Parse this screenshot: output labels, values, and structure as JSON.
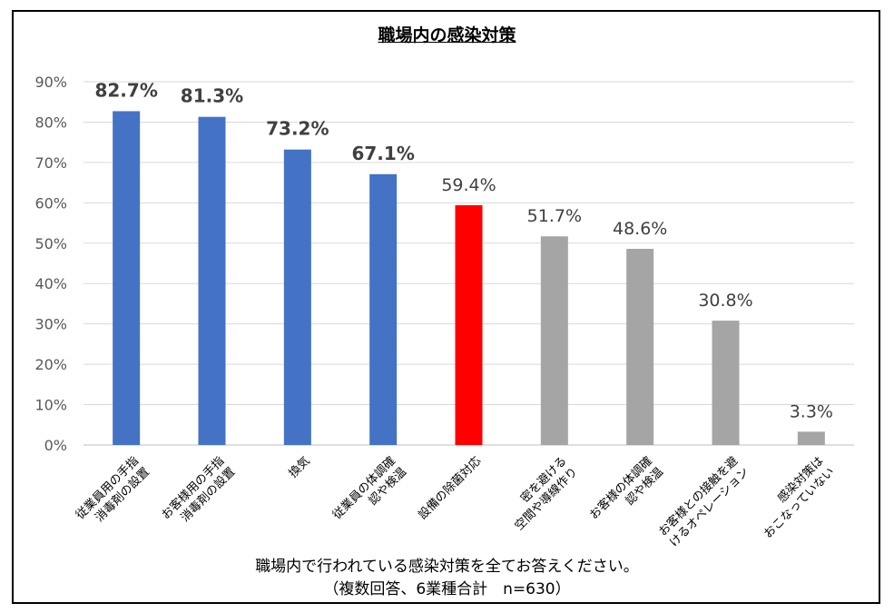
{
  "chart_data": {
    "type": "bar",
    "title": "職場内の感染対策",
    "categories": [
      [
        "従業員用の手指",
        "消毒剤の設置"
      ],
      [
        "お客様用の手指",
        "消毒剤の設置"
      ],
      [
        "換気"
      ],
      [
        "従業員の体調確",
        "認や検温"
      ],
      [
        "設備の除菌対応"
      ],
      [
        "密を避ける",
        "空間や導線作り"
      ],
      [
        "お客様の体調確",
        "認や検温"
      ],
      [
        "お客様との接触を避",
        "けるオペレーション"
      ],
      [
        "感染対策は",
        "おこなっていない"
      ]
    ],
    "values": [
      82.7,
      81.3,
      73.2,
      67.1,
      59.4,
      51.7,
      48.6,
      30.8,
      3.3
    ],
    "value_labels": [
      "82.7%",
      "81.3%",
      "73.2%",
      "67.1%",
      "59.4%",
      "51.7%",
      "48.6%",
      "30.8%",
      "3.3%"
    ],
    "bold_labels": [
      true,
      true,
      true,
      true,
      false,
      false,
      false,
      false,
      false
    ],
    "colors": [
      "#4472C4",
      "#4472C4",
      "#4472C4",
      "#4472C4",
      "#FF0000",
      "#A5A5A5",
      "#A5A5A5",
      "#A5A5A5",
      "#A5A5A5"
    ],
    "y_ticks": [
      "0%",
      "10%",
      "20%",
      "30%",
      "40%",
      "50%",
      "60%",
      "70%",
      "80%",
      "90%"
    ],
    "ylim": [
      0,
      90
    ],
    "grid": true,
    "xlabel": "",
    "ylabel": ""
  },
  "caption": {
    "line1": "職場内で行われている感染対策を全てお答えください。",
    "line2": "（複数回答、6業種合計　n=630）"
  }
}
